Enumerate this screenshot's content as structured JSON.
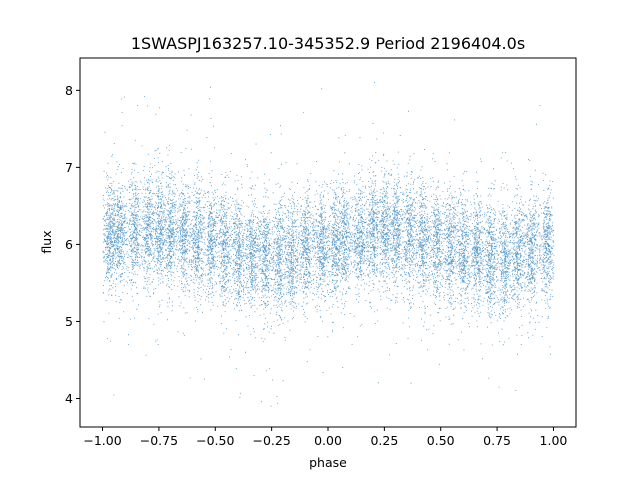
{
  "chart_data": {
    "type": "scatter",
    "title": "1SWASPJ163257.10-345352.9 Period 2196404.0s",
    "xlabel": "phase",
    "ylabel": "flux",
    "xlim": [
      -1.1,
      1.1
    ],
    "ylim": [
      3.63,
      8.42
    ],
    "x_ticks": [
      -1.0,
      -0.75,
      -0.5,
      -0.25,
      0.0,
      0.25,
      0.5,
      0.75,
      1.0
    ],
    "x_tick_labels": [
      "−1.00",
      "−0.75",
      "−0.50",
      "−0.25",
      "0.00",
      "0.25",
      "0.50",
      "0.75",
      "1.00"
    ],
    "y_ticks": [
      4,
      5,
      6,
      7,
      8
    ],
    "y_tick_labels": [
      "4",
      "5",
      "6",
      "7",
      "8"
    ],
    "grid": false,
    "legend": "none",
    "marker_color": "#1f77b4",
    "phase_range": [
      -1.0,
      1.0
    ],
    "period_repeats": true,
    "cluster_centers_phase": [
      -0.97,
      -0.93,
      -0.86,
      -0.8,
      -0.75,
      -0.7,
      -0.64,
      -0.58,
      -0.52,
      -0.46,
      -0.4,
      -0.34,
      -0.28,
      -0.22,
      -0.16,
      -0.1,
      -0.03
    ],
    "median_flux_profile": [
      {
        "phase": -1.0,
        "flux": 6.1
      },
      {
        "phase": -0.75,
        "flux": 6.2
      },
      {
        "phase": -0.5,
        "flux": 6.0
      },
      {
        "phase": -0.25,
        "flux": 5.8
      },
      {
        "phase": 0.0,
        "flux": 6.0
      },
      {
        "phase": 0.25,
        "flux": 6.2
      },
      {
        "phase": 0.5,
        "flux": 6.0
      },
      {
        "phase": 0.75,
        "flux": 5.8
      },
      {
        "phase": 1.0,
        "flux": 6.0
      }
    ],
    "flux_scatter_core": [
      5.3,
      6.8
    ],
    "flux_extremes": [
      3.85,
      8.2
    ]
  }
}
